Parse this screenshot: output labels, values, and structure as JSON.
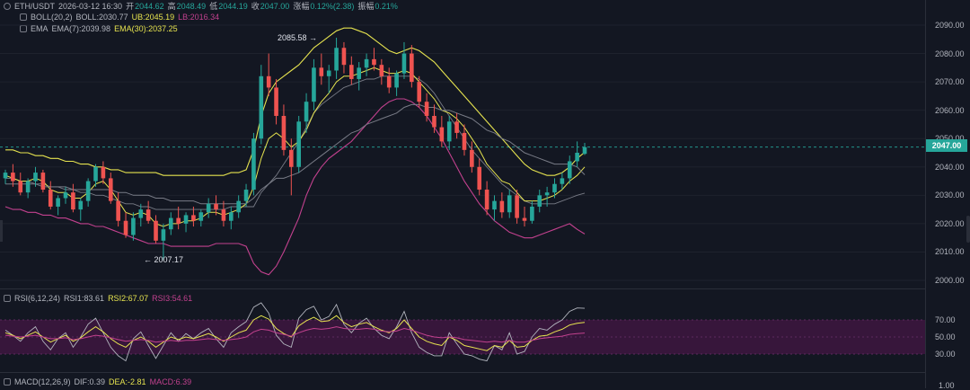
{
  "header": {
    "symbol": "ETH/USDT",
    "datetime": "2026-03-12 16:30",
    "open_label": "开",
    "open": "2044.62",
    "high_label": "高",
    "high": "2048.49",
    "low_label": "低",
    "low": "2044.19",
    "close_label": "收",
    "close": "2047.00",
    "change_label": "涨幅",
    "change": "0.12%(2.38)",
    "amplitude_label": "振幅",
    "amplitude": "0.21%"
  },
  "boll": {
    "label": "BOLL(20,2)",
    "mid": "BOLL:2030.77",
    "ub": "UB:2045.19",
    "lb": "LB:2016.34"
  },
  "ema": {
    "label": "EMA",
    "ema7": "EMA(7):2039.98",
    "ema30": "EMA(30):2037.25"
  },
  "price_axis": {
    "ticks": [
      "2090.00",
      "2080.00",
      "2070.00",
      "2060.00",
      "2050.00",
      "2040.00",
      "2030.00",
      "2020.00",
      "2010.00",
      "2000.00"
    ],
    "current_price": "2047.00"
  },
  "annotations": {
    "high": "2085.58 →",
    "low": "← 2007.17"
  },
  "rsi": {
    "label": "RSI(6,12,24)",
    "rsi1": "RSI1:83.61",
    "rsi2": "RSI2:67.07",
    "rsi3": "RSI3:54.61",
    "ticks": [
      "70.00",
      "50.00",
      "30.00"
    ]
  },
  "macd": {
    "label": "MACD(12,26,9)",
    "dif": "DIF:0.39",
    "dea": "DEA:-2.81",
    "macd": "MACD:6.39",
    "tick": "1.00"
  },
  "colors": {
    "background": "#131722",
    "up": "#26a69a",
    "down": "#ef5350",
    "boll_band": "#c3c04a",
    "ub": "#e6e34f",
    "lb": "#c2418e",
    "mid": "#787b86",
    "ema7": "#e6e34f",
    "ema30": "#787b86",
    "rsi1": "#b2b5be",
    "rsi2": "#e6e34f",
    "rsi3": "#c2418e",
    "rsi_zone": "#3e1640"
  },
  "chart_data": {
    "type": "candlestick",
    "title": "",
    "xlabel": "",
    "ylabel": "",
    "ylim": [
      1996,
      2096
    ],
    "ohlc": [
      [
        2036,
        2039,
        2034,
        2038
      ],
      [
        2038,
        2041,
        2033,
        2035
      ],
      [
        2035,
        2038,
        2030,
        2031
      ],
      [
        2031,
        2036,
        2029,
        2035
      ],
      [
        2035,
        2040,
        2033,
        2038
      ],
      [
        2038,
        2039,
        2031,
        2032
      ],
      [
        2032,
        2035,
        2025,
        2026
      ],
      [
        2026,
        2030,
        2023,
        2029
      ],
      [
        2029,
        2033,
        2027,
        2031
      ],
      [
        2031,
        2034,
        2024,
        2025
      ],
      [
        2025,
        2029,
        2021,
        2028
      ],
      [
        2028,
        2036,
        2026,
        2035
      ],
      [
        2035,
        2041,
        2033,
        2040
      ],
      [
        2040,
        2042,
        2034,
        2036
      ],
      [
        2036,
        2038,
        2027,
        2028
      ],
      [
        2028,
        2031,
        2019,
        2021
      ],
      [
        2021,
        2024,
        2015,
        2016
      ],
      [
        2016,
        2024,
        2014,
        2022
      ],
      [
        2022,
        2027,
        2019,
        2025
      ],
      [
        2025,
        2028,
        2020,
        2021
      ],
      [
        2021,
        2023,
        2013,
        2014
      ],
      [
        2014,
        2020,
        2007.17,
        2018
      ],
      [
        2018,
        2024,
        2016,
        2022
      ],
      [
        2022,
        2026,
        2018,
        2020
      ],
      [
        2020,
        2024,
        2017,
        2023
      ],
      [
        2023,
        2026,
        2019,
        2021
      ],
      [
        2021,
        2025,
        2019,
        2024
      ],
      [
        2024,
        2029,
        2022,
        2027
      ],
      [
        2027,
        2030,
        2023,
        2025
      ],
      [
        2025,
        2028,
        2019,
        2021
      ],
      [
        2021,
        2026,
        2018,
        2024
      ],
      [
        2024,
        2030,
        2022,
        2028
      ],
      [
        2028,
        2034,
        2026,
        2032
      ],
      [
        2032,
        2052,
        2030,
        2050
      ],
      [
        2050,
        2076,
        2048,
        2072
      ],
      [
        2072,
        2080,
        2065,
        2068
      ],
      [
        2068,
        2071,
        2055,
        2058
      ],
      [
        2058,
        2062,
        2044,
        2046
      ],
      [
        2046,
        2050,
        2030,
        2040
      ],
      [
        2040,
        2058,
        2038,
        2056
      ],
      [
        2056,
        2066,
        2052,
        2063
      ],
      [
        2063,
        2078,
        2060,
        2075
      ],
      [
        2075,
        2080,
        2069,
        2072
      ],
      [
        2072,
        2076,
        2066,
        2074
      ],
      [
        2074,
        2085.58,
        2071,
        2082
      ],
      [
        2082,
        2084,
        2073,
        2076
      ],
      [
        2076,
        2079,
        2069,
        2071
      ],
      [
        2071,
        2077,
        2067,
        2075
      ],
      [
        2075,
        2080,
        2072,
        2078
      ],
      [
        2078,
        2082,
        2074,
        2076
      ],
      [
        2076,
        2078,
        2069,
        2072
      ],
      [
        2072,
        2075,
        2066,
        2068
      ],
      [
        2068,
        2074,
        2065,
        2073
      ],
      [
        2073,
        2084,
        2071,
        2080
      ],
      [
        2080,
        2083,
        2068,
        2070
      ],
      [
        2070,
        2072,
        2061,
        2063
      ],
      [
        2063,
        2066,
        2056,
        2058
      ],
      [
        2058,
        2062,
        2052,
        2054
      ],
      [
        2054,
        2058,
        2047,
        2049
      ],
      [
        2049,
        2058,
        2046,
        2056
      ],
      [
        2056,
        2059,
        2050,
        2052
      ],
      [
        2052,
        2055,
        2044,
        2046
      ],
      [
        2046,
        2049,
        2038,
        2040
      ],
      [
        2040,
        2043,
        2030,
        2032
      ],
      [
        2032,
        2035,
        2023,
        2025
      ],
      [
        2025,
        2030,
        2021,
        2028
      ],
      [
        2028,
        2031,
        2022,
        2024
      ],
      [
        2024,
        2032,
        2022,
        2030
      ],
      [
        2030,
        2032,
        2020,
        2022
      ],
      [
        2022,
        2026,
        2019,
        2021
      ],
      [
        2021,
        2028,
        2020,
        2026
      ],
      [
        2026,
        2032,
        2024,
        2030
      ],
      [
        2030,
        2033,
        2026,
        2031
      ],
      [
        2031,
        2036,
        2029,
        2034
      ],
      [
        2034,
        2038,
        2032,
        2036
      ],
      [
        2036,
        2044,
        2034,
        2042
      ],
      [
        2042,
        2049,
        2040,
        2045
      ],
      [
        2044.62,
        2048.49,
        2044.19,
        2047.0
      ]
    ],
    "series": [
      {
        "name": "UB",
        "values": [
          2046,
          2046,
          2045,
          2045,
          2044,
          2044,
          2043,
          2043,
          2042,
          2042,
          2041,
          2041,
          2040,
          2040,
          2039,
          2039,
          2038,
          2038,
          2038,
          2038,
          2038,
          2037,
          2037,
          2037,
          2037,
          2037,
          2037,
          2037,
          2037,
          2037,
          2038,
          2038,
          2039,
          2046,
          2058,
          2066,
          2070,
          2072,
          2074,
          2076,
          2079,
          2082,
          2084,
          2086,
          2088,
          2089,
          2089,
          2088,
          2087,
          2085,
          2083,
          2081,
          2080,
          2081,
          2082,
          2081,
          2079,
          2077,
          2074,
          2071,
          2068,
          2065,
          2062,
          2059,
          2056,
          2053,
          2050,
          2047,
          2044,
          2041,
          2039,
          2038,
          2037,
          2037,
          2038,
          2040,
          2043,
          2045.19
        ]
      },
      {
        "name": "LB",
        "values": [
          2026,
          2025,
          2025,
          2024,
          2024,
          2023,
          2023,
          2022,
          2022,
          2021,
          2020,
          2020,
          2019,
          2019,
          2018,
          2017,
          2016,
          2015,
          2014,
          2013,
          2013,
          2013,
          2012,
          2012,
          2012,
          2012,
          2012,
          2012,
          2013,
          2013,
          2013,
          2013,
          2012,
          2006,
          2003,
          2002,
          2005,
          2010,
          2016,
          2022,
          2030,
          2036,
          2040,
          2043,
          2045,
          2047,
          2049,
          2052,
          2055,
          2058,
          2061,
          2063,
          2064,
          2064,
          2063,
          2061,
          2058,
          2054,
          2050,
          2045,
          2040,
          2035,
          2031,
          2027,
          2024,
          2021,
          2019,
          2017,
          2016,
          2015,
          2015,
          2016,
          2017,
          2018,
          2019,
          2020,
          2018,
          2016.34
        ]
      },
      {
        "name": "BOLL",
        "values": [
          2036,
          2036,
          2035,
          2035,
          2034,
          2034,
          2033,
          2033,
          2032,
          2032,
          2031,
          2031,
          2030,
          2030,
          2029,
          2028,
          2027,
          2027,
          2026,
          2026,
          2025,
          2025,
          2025,
          2025,
          2025,
          2025,
          2025,
          2025,
          2025,
          2025,
          2026,
          2026,
          2026,
          2026,
          2031,
          2034,
          2037,
          2041,
          2045,
          2049,
          2054,
          2059,
          2062,
          2064,
          2066,
          2068,
          2069,
          2070,
          2071,
          2071,
          2072,
          2072,
          2072,
          2072,
          2072,
          2071,
          2069,
          2066,
          2062,
          2058,
          2054,
          2050,
          2046,
          2043,
          2040,
          2037,
          2034,
          2032,
          2030,
          2028,
          2027,
          2027,
          2027,
          2027,
          2028,
          2029,
          2030,
          2030.77
        ]
      },
      {
        "name": "EMA(7)",
        "values": [
          2037,
          2036,
          2035,
          2035,
          2036,
          2035,
          2032,
          2031,
          2031,
          2029,
          2029,
          2031,
          2034,
          2035,
          2032,
          2028,
          2024,
          2023,
          2024,
          2023,
          2020,
          2019,
          2020,
          2020,
          2021,
          2021,
          2022,
          2024,
          2024,
          2023,
          2024,
          2025,
          2027,
          2033,
          2043,
          2050,
          2052,
          2050,
          2047,
          2049,
          2053,
          2059,
          2063,
          2066,
          2070,
          2072,
          2072,
          2073,
          2074,
          2075,
          2074,
          2073,
          2073,
          2074,
          2073,
          2070,
          2067,
          2064,
          2060,
          2059,
          2057,
          2054,
          2050,
          2046,
          2041,
          2038,
          2035,
          2034,
          2031,
          2028,
          2028,
          2028,
          2029,
          2030,
          2032,
          2035,
          2037,
          2039.98
        ]
      },
      {
        "name": "EMA(30)",
        "values": [
          2034,
          2034,
          2034,
          2034,
          2034,
          2033,
          2033,
          2033,
          2033,
          2032,
          2032,
          2032,
          2032,
          2032,
          2032,
          2031,
          2031,
          2030,
          2030,
          2030,
          2029,
          2029,
          2028,
          2028,
          2028,
          2028,
          2027,
          2027,
          2027,
          2027,
          2027,
          2027,
          2027,
          2029,
          2032,
          2034,
          2036,
          2036,
          2037,
          2038,
          2040,
          2042,
          2044,
          2046,
          2048,
          2050,
          2052,
          2053,
          2055,
          2056,
          2057,
          2058,
          2059,
          2061,
          2062,
          2062,
          2061,
          2061,
          2060,
          2060,
          2059,
          2058,
          2057,
          2055,
          2053,
          2052,
          2050,
          2049,
          2047,
          2045,
          2044,
          2043,
          2042,
          2041,
          2041,
          2041,
          2040,
          2037.25
        ]
      },
      {
        "name": "RSI1",
        "values": [
          58,
          52,
          45,
          55,
          62,
          45,
          35,
          48,
          55,
          38,
          50,
          65,
          72,
          55,
          38,
          28,
          22,
          48,
          56,
          40,
          25,
          40,
          55,
          45,
          54,
          48,
          55,
          60,
          48,
          38,
          55,
          62,
          68,
          85,
          90,
          78,
          52,
          42,
          38,
          72,
          82,
          86,
          70,
          74,
          88,
          65,
          55,
          66,
          72,
          60,
          52,
          48,
          62,
          80,
          55,
          38,
          32,
          28,
          28,
          55,
          42,
          30,
          28,
          24,
          22,
          40,
          35,
          55,
          30,
          33,
          50,
          60,
          58,
          65,
          70,
          80,
          84,
          83.61
        ]
      },
      {
        "name": "RSI2",
        "values": [
          55,
          52,
          48,
          52,
          56,
          50,
          44,
          48,
          52,
          45,
          49,
          56,
          62,
          56,
          48,
          42,
          38,
          46,
          50,
          45,
          38,
          44,
          50,
          47,
          50,
          48,
          51,
          54,
          50,
          45,
          50,
          55,
          58,
          70,
          75,
          71,
          60,
          54,
          50,
          63,
          69,
          73,
          68,
          69,
          75,
          67,
          62,
          65,
          67,
          62,
          58,
          55,
          60,
          70,
          60,
          50,
          45,
          42,
          40,
          50,
          46,
          40,
          38,
          36,
          34,
          40,
          38,
          46,
          38,
          39,
          46,
          51,
          52,
          56,
          59,
          64,
          66,
          67.07
        ]
      },
      {
        "name": "RSI3",
        "values": [
          52,
          51,
          50,
          51,
          52,
          50,
          48,
          48,
          49,
          47,
          48,
          50,
          52,
          51,
          49,
          47,
          45,
          46,
          47,
          46,
          44,
          45,
          46,
          45,
          46,
          46,
          47,
          48,
          47,
          46,
          47,
          48,
          50,
          56,
          59,
          58,
          55,
          53,
          51,
          55,
          58,
          60,
          59,
          60,
          62,
          60,
          59,
          59,
          60,
          59,
          57,
          56,
          57,
          60,
          58,
          55,
          52,
          50,
          49,
          50,
          49,
          47,
          46,
          45,
          44,
          45,
          44,
          46,
          44,
          44,
          46,
          48,
          49,
          50,
          51,
          53,
          54,
          54.61
        ]
      }
    ],
    "rsi_ylim": [
      10,
      92
    ]
  }
}
